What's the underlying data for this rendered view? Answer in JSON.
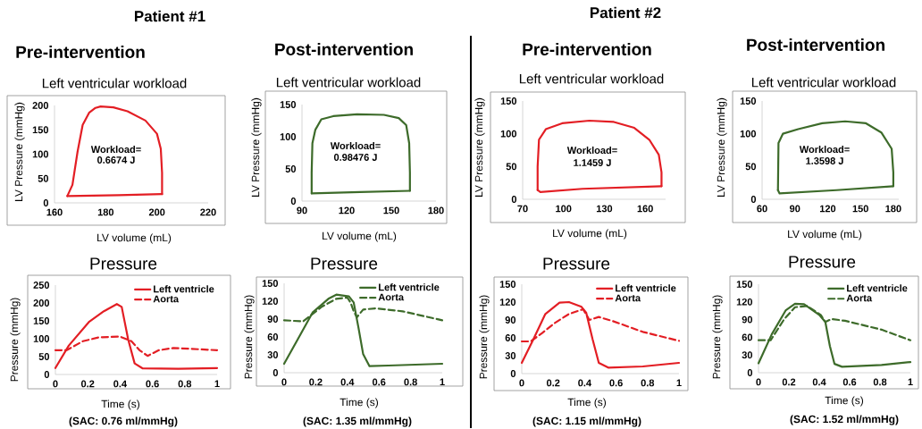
{
  "chart_data": [
    {
      "type": "other",
      "title": "Patient #1"
    },
    {
      "type": "line",
      "title": "Pre-intervention",
      "subtitle": "Left ventricular workload",
      "xlabel": "LV volume (mL)",
      "ylabel": "LV Pressure (mmHg)",
      "annotations": [
        "Workload=",
        "0.6674 J"
      ],
      "xlim": [
        160,
        220
      ],
      "ylim": [
        0,
        200
      ],
      "xticks": [
        160,
        180,
        200,
        220
      ],
      "yticks": [
        0,
        50,
        100,
        150,
        200
      ],
      "series": [
        {
          "color": "#e31e24",
          "line_style": "solid",
          "x": [
            165,
            167,
            169,
            171,
            173.5,
            176,
            178,
            183,
            188.5,
            195.5,
            200,
            201.5,
            202,
            202
          ],
          "values": [
            14,
            37,
            105,
            160,
            185,
            195,
            198,
            196,
            188,
            169,
            142,
            111,
            62,
            18
          ]
        },
        {
          "color": "#e31e24",
          "line_style": "solid",
          "x": [
            165,
            185,
            202
          ],
          "values": [
            14,
            16,
            18
          ]
        }
      ]
    },
    {
      "type": "line",
      "title": "Post-intervention",
      "subtitle": "Left ventricular workload",
      "xlabel": "LV volume (mL)",
      "ylabel": "LV Pressure (mmHg)",
      "annotations": [
        "Workload=",
        "0.98476 J"
      ],
      "xlim": [
        90,
        180
      ],
      "ylim": [
        0,
        150
      ],
      "xticks": [
        90,
        120,
        150,
        180
      ],
      "yticks": [
        0,
        50,
        100,
        150
      ],
      "series": [
        {
          "color": "#3d6b2a",
          "line_style": "solid",
          "x": [
            96.5,
            96.5,
            97,
            99,
            103,
            111,
            127,
            145,
            155,
            160,
            162,
            162.5,
            162.5
          ],
          "values": [
            12,
            44,
            90,
            111,
            127,
            132,
            135,
            134,
            129,
            118,
            90,
            44,
            16
          ]
        },
        {
          "color": "#3d6b2a",
          "line_style": "solid",
          "x": [
            96.5,
            129,
            162.5
          ],
          "values": [
            12,
            14,
            16
          ]
        }
      ]
    },
    {
      "type": "line",
      "title": "Pressure",
      "xlabel": "Time (s)",
      "ylabel": "Pressure (mmHg)",
      "annotations": [
        "(SAC: 0.76 ml/mmHg)"
      ],
      "xlim": [
        0,
        1
      ],
      "ylim": [
        0,
        250
      ],
      "xticks": [
        0,
        0.2,
        0.4,
        0.6,
        0.8,
        1
      ],
      "yticks": [
        0,
        50,
        100,
        150,
        200,
        250
      ],
      "legend": "top right",
      "series": [
        {
          "name": "Left ventricle",
          "color": "#e31e24",
          "line_style": "solid",
          "x": [
            0,
            0.083,
            0.21,
            0.3,
            0.38,
            0.41,
            0.45,
            0.49,
            0.54,
            0.76,
            1
          ],
          "values": [
            18,
            81,
            148,
            177,
            197,
            189,
            98,
            31,
            17,
            16,
            18
          ]
        },
        {
          "name": "Aorta",
          "color": "#e31e24",
          "line_style": "dashed",
          "x": [
            0,
            0.07,
            0.17,
            0.27,
            0.4,
            0.47,
            0.52,
            0.57,
            0.64,
            0.73,
            1
          ],
          "values": [
            68,
            68,
            93,
            104,
            106,
            93,
            68,
            52,
            68,
            74,
            68
          ]
        }
      ]
    },
    {
      "type": "line",
      "title": "Pressure",
      "xlabel": "Time (s)",
      "ylabel": "Pressure (mmHg)",
      "annotations": [
        "(SAC: 1.35 ml/mmHg)"
      ],
      "xlim": [
        0,
        1
      ],
      "ylim": [
        0,
        150
      ],
      "xticks": [
        0,
        0.2,
        0.4,
        0.6,
        0.8,
        1
      ],
      "yticks": [
        0,
        30,
        60,
        90,
        120,
        150
      ],
      "legend": "top right",
      "series": [
        {
          "name": "Left ventricle",
          "color": "#3d6b2a",
          "line_style": "solid",
          "x": [
            0,
            0.086,
            0.18,
            0.28,
            0.33,
            0.41,
            0.44,
            0.47,
            0.5,
            0.54,
            0.66,
            1
          ],
          "values": [
            15,
            56,
            101,
            124,
            131,
            128,
            118,
            76,
            31,
            11,
            12,
            15
          ]
        },
        {
          "name": "Aorta",
          "color": "#3d6b2a",
          "line_style": "dashed",
          "x": [
            0,
            0.12,
            0.24,
            0.33,
            0.4,
            0.42,
            0.44,
            0.46,
            0.5,
            0.58,
            0.75,
            1
          ],
          "values": [
            88,
            86,
            111,
            124,
            126,
            118,
            103,
            93,
            106,
            108,
            103,
            88
          ]
        }
      ]
    },
    {
      "type": "other",
      "title": "Patient #2"
    },
    {
      "type": "line",
      "title": "Pre-intervention",
      "subtitle": "Left ventricular workload",
      "xlabel": "LV volume (mL)",
      "ylabel": "LV Pressure (mmHg)",
      "annotations": [
        "Workload=",
        "1.1459 J"
      ],
      "xlim": [
        70,
        175
      ],
      "ylim": [
        0,
        150
      ],
      "xticks": [
        70,
        100,
        130,
        160
      ],
      "yticks": [
        0,
        50,
        100,
        150
      ],
      "series": [
        {
          "color": "#e31e24",
          "line_style": "solid",
          "x": [
            81,
            81,
            82,
            87,
            99,
            119,
            137,
            152,
            163,
            170,
            172,
            172
          ],
          "values": [
            14,
            50,
            91,
            107,
            116,
            120,
            118,
            109,
            91,
            68,
            41,
            20
          ]
        },
        {
          "color": "#e31e24",
          "line_style": "solid",
          "x": [
            81,
            83,
            114,
            172
          ],
          "values": [
            14,
            11,
            16,
            20
          ]
        }
      ]
    },
    {
      "type": "line",
      "title": "Post-intervention",
      "subtitle": "Left ventricular workload",
      "xlabel": "LV volume (mL)",
      "ylabel": "LV Pressure (mmHg)",
      "annotations": [
        "Workload=",
        "1.3598 J"
      ],
      "xlim": [
        60,
        185
      ],
      "ylim": [
        0,
        150
      ],
      "xticks": [
        60,
        90,
        120,
        150,
        180
      ],
      "yticks": [
        0,
        50,
        100,
        150
      ],
      "series": [
        {
          "color": "#3d6b2a",
          "line_style": "solid",
          "x": [
            74.5,
            75,
            79,
            93,
            115,
            136,
            155,
            169,
            178.5,
            180,
            180
          ],
          "values": [
            14,
            86,
            100,
            107,
            116,
            119,
            116,
            102,
            77,
            41,
            20
          ]
        },
        {
          "color": "#3d6b2a",
          "line_style": "solid",
          "x": [
            74.5,
            76,
            128,
            180
          ],
          "values": [
            14,
            9,
            14,
            20
          ]
        }
      ]
    },
    {
      "type": "line",
      "title": "Pressure",
      "xlabel": "Time (s)",
      "ylabel": "Pressure (mmHg)",
      "annotations": [
        "(SAC: 1.15 ml/mmHg)"
      ],
      "xlim": [
        0,
        1
      ],
      "ylim": [
        0,
        150
      ],
      "xticks": [
        0,
        0.2,
        0.4,
        0.6,
        0.8,
        1
      ],
      "yticks": [
        0,
        30,
        60,
        90,
        120,
        150
      ],
      "legend": "top right",
      "series": [
        {
          "name": "Left ventricle",
          "color": "#e31e24",
          "line_style": "solid",
          "x": [
            0,
            0.075,
            0.15,
            0.24,
            0.3,
            0.38,
            0.41,
            0.45,
            0.49,
            0.55,
            0.77,
            1
          ],
          "values": [
            18,
            58,
            100,
            119,
            120,
            112,
            102,
            58,
            18,
            10,
            12,
            18
          ]
        },
        {
          "name": "Aorta",
          "color": "#e31e24",
          "line_style": "dashed",
          "x": [
            0,
            0.056,
            0.13,
            0.21,
            0.3,
            0.39,
            0.43,
            0.49,
            0.58,
            0.77,
            1
          ],
          "values": [
            54,
            54,
            68,
            85,
            100,
            108,
            90,
            95,
            88,
            70,
            55
          ]
        }
      ]
    },
    {
      "type": "line",
      "title": "Pressure",
      "xlabel": "Time (s)",
      "ylabel": "Pressure (mmHg)",
      "annotations": [
        "(SAC: 1.52 ml/mmHg)"
      ],
      "xlim": [
        0,
        1
      ],
      "ylim": [
        0,
        150
      ],
      "xticks": [
        0,
        0.2,
        0.4,
        0.6,
        0.8,
        1
      ],
      "yticks": [
        0,
        30,
        60,
        90,
        120,
        150
      ],
      "legend": "top right",
      "series": [
        {
          "name": "Left ventricle",
          "color": "#3d6b2a",
          "line_style": "solid",
          "x": [
            0,
            0.087,
            0.18,
            0.24,
            0.3,
            0.4,
            0.44,
            0.47,
            0.5,
            0.55,
            0.81,
            1
          ],
          "values": [
            16,
            65,
            106,
            117,
            116,
            98,
            86,
            45,
            15,
            10,
            13,
            18
          ]
        },
        {
          "name": "Aorta",
          "color": "#3d6b2a",
          "line_style": "dashed",
          "x": [
            0,
            0.08,
            0.17,
            0.24,
            0.32,
            0.41,
            0.44,
            0.48,
            0.57,
            0.81,
            1
          ],
          "values": [
            55,
            55,
            91,
            111,
            113,
            98,
            86,
            91,
            88,
            73,
            55
          ]
        }
      ]
    }
  ]
}
